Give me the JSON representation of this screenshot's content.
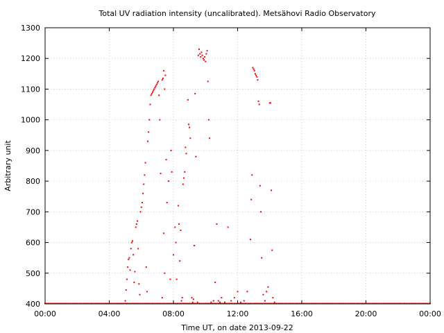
{
  "chart_data": {
    "type": "scatter",
    "title": "Total UV radiation intensity (uncalibrated). Metsähovi Radio Observatory",
    "xlabel": "Time UT, on date 2013-09-22",
    "ylabel": "Arbitrary unit",
    "x_unit": "hours UT",
    "xlim": [
      0,
      24
    ],
    "ylim": [
      400,
      1300
    ],
    "grid": true,
    "color": "#ff0000",
    "x_ticks": [
      {
        "value": 0,
        "label": "00:00"
      },
      {
        "value": 4,
        "label": "04:00"
      },
      {
        "value": 8,
        "label": "08:00"
      },
      {
        "value": 12,
        "label": "12:00"
      },
      {
        "value": 16,
        "label": "16:00"
      },
      {
        "value": 20,
        "label": "20:00"
      },
      {
        "value": 24,
        "label": "00:00"
      }
    ],
    "y_ticks": [
      {
        "value": 400,
        "label": "400"
      },
      {
        "value": 500,
        "label": "500"
      },
      {
        "value": 600,
        "label": "600"
      },
      {
        "value": 700,
        "label": "700"
      },
      {
        "value": 800,
        "label": "800"
      },
      {
        "value": 900,
        "label": "900"
      },
      {
        "value": 1000,
        "label": "1000"
      },
      {
        "value": 1100,
        "label": "1100"
      },
      {
        "value": 1200,
        "label": "1200"
      },
      {
        "value": 1300,
        "label": "1300"
      }
    ],
    "baseline": {
      "y": 400,
      "x_from": 0,
      "x_to": 24,
      "step": 0.1
    },
    "points": [
      [
        5.0,
        410
      ],
      [
        5.05,
        445
      ],
      [
        5.1,
        480
      ],
      [
        5.15,
        520
      ],
      [
        5.2,
        545
      ],
      [
        5.25,
        550
      ],
      [
        5.3,
        510
      ],
      [
        5.35,
        580
      ],
      [
        5.4,
        600
      ],
      [
        5.45,
        605
      ],
      [
        5.5,
        560
      ],
      [
        5.55,
        470
      ],
      [
        5.6,
        505
      ],
      [
        5.65,
        650
      ],
      [
        5.7,
        660
      ],
      [
        5.75,
        670
      ],
      [
        5.8,
        580
      ],
      [
        5.85,
        465
      ],
      [
        5.9,
        430
      ],
      [
        5.95,
        700
      ],
      [
        6.0,
        715
      ],
      [
        6.05,
        730
      ],
      [
        6.1,
        760
      ],
      [
        6.15,
        790
      ],
      [
        6.2,
        820
      ],
      [
        6.25,
        860
      ],
      [
        6.3,
        520
      ],
      [
        6.35,
        440
      ],
      [
        6.4,
        930
      ],
      [
        6.45,
        960
      ],
      [
        6.5,
        1000
      ],
      [
        6.55,
        1050
      ],
      [
        6.6,
        1080
      ],
      [
        6.65,
        1085
      ],
      [
        6.7,
        1090
      ],
      [
        6.75,
        1095
      ],
      [
        6.8,
        1100
      ],
      [
        6.85,
        1105
      ],
      [
        6.9,
        1110
      ],
      [
        6.95,
        1115
      ],
      [
        7.0,
        1120
      ],
      [
        7.05,
        1125
      ],
      [
        7.1,
        1080
      ],
      [
        7.15,
        1000
      ],
      [
        7.2,
        825
      ],
      [
        7.3,
        1130
      ],
      [
        7.35,
        1135
      ],
      [
        7.4,
        1160
      ],
      [
        7.45,
        1100
      ],
      [
        7.5,
        1145
      ],
      [
        7.3,
        420
      ],
      [
        7.4,
        630
      ],
      [
        7.45,
        500
      ],
      [
        7.55,
        870
      ],
      [
        7.6,
        730
      ],
      [
        7.7,
        800
      ],
      [
        7.8,
        480
      ],
      [
        7.85,
        900
      ],
      [
        7.9,
        830
      ],
      [
        8.0,
        560
      ],
      [
        8.1,
        650
      ],
      [
        8.15,
        600
      ],
      [
        8.2,
        480
      ],
      [
        8.3,
        720
      ],
      [
        8.35,
        660
      ],
      [
        8.4,
        540
      ],
      [
        8.45,
        640
      ],
      [
        8.5,
        410
      ],
      [
        8.55,
        420
      ],
      [
        8.6,
        790
      ],
      [
        8.65,
        810
      ],
      [
        8.7,
        830
      ],
      [
        8.75,
        910
      ],
      [
        8.8,
        890
      ],
      [
        8.9,
        1065
      ],
      [
        8.95,
        985
      ],
      [
        9.0,
        975
      ],
      [
        9.05,
        940
      ],
      [
        9.15,
        420
      ],
      [
        9.2,
        405
      ],
      [
        9.25,
        415
      ],
      [
        9.3,
        590
      ],
      [
        9.35,
        1085
      ],
      [
        9.4,
        880
      ],
      [
        9.5,
        405
      ],
      [
        9.55,
        1210
      ],
      [
        9.6,
        1230
      ],
      [
        9.65,
        1215
      ],
      [
        9.7,
        1205
      ],
      [
        9.75,
        1220
      ],
      [
        9.8,
        1210
      ],
      [
        9.85,
        1200
      ],
      [
        9.9,
        1195
      ],
      [
        9.95,
        1205
      ],
      [
        10.0,
        1190
      ],
      [
        10.05,
        1215
      ],
      [
        10.1,
        1225
      ],
      [
        10.15,
        1125
      ],
      [
        10.2,
        1000
      ],
      [
        10.25,
        940
      ],
      [
        10.35,
        405
      ],
      [
        10.5,
        410
      ],
      [
        10.6,
        470
      ],
      [
        10.7,
        660
      ],
      [
        10.8,
        410
      ],
      [
        10.9,
        405
      ],
      [
        11.0,
        420
      ],
      [
        11.2,
        405
      ],
      [
        11.4,
        650
      ],
      [
        11.6,
        410
      ],
      [
        11.8,
        420
      ],
      [
        12.0,
        440
      ],
      [
        12.2,
        405
      ],
      [
        12.4,
        410
      ],
      [
        12.6,
        440
      ],
      [
        12.8,
        610
      ],
      [
        12.85,
        740
      ],
      [
        12.9,
        820
      ],
      [
        12.95,
        1170
      ],
      [
        13.0,
        1165
      ],
      [
        13.05,
        1160
      ],
      [
        13.1,
        1150
      ],
      [
        13.15,
        1145
      ],
      [
        13.2,
        1140
      ],
      [
        13.25,
        1130
      ],
      [
        13.3,
        1060
      ],
      [
        13.35,
        1050
      ],
      [
        13.4,
        785
      ],
      [
        13.45,
        700
      ],
      [
        13.5,
        550
      ],
      [
        13.6,
        430
      ],
      [
        13.7,
        410
      ],
      [
        13.8,
        440
      ],
      [
        13.9,
        455
      ],
      [
        14.0,
        1055
      ],
      [
        14.05,
        1055
      ],
      [
        14.1,
        770
      ],
      [
        14.15,
        575
      ],
      [
        14.2,
        420
      ],
      [
        14.3,
        405
      ]
    ]
  }
}
